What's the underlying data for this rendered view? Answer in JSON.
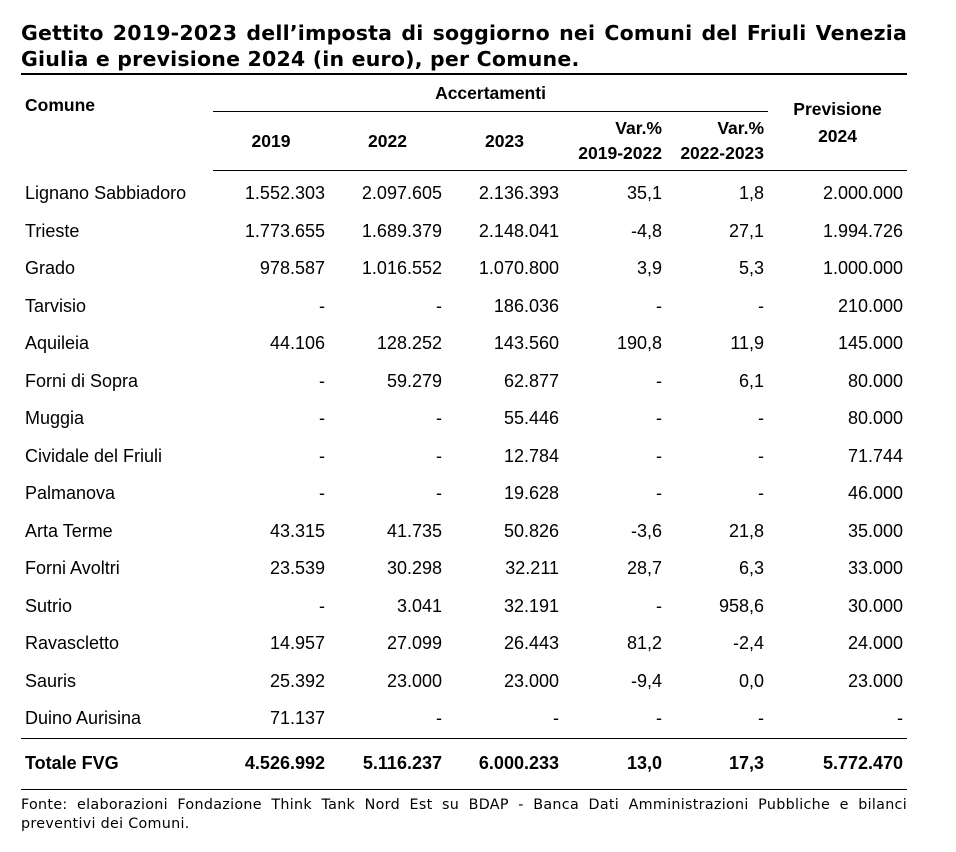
{
  "title": "Gettito 2019-2023 dell’imposta di soggiorno nei Comuni del Friuli Venezia Giulia e previsione 2024 (in euro), per Comune.",
  "headers": {
    "comune": "Comune",
    "accertamenti": "Accertamenti",
    "y2019": "2019",
    "y2022": "2022",
    "y2023": "2023",
    "var1_line1": "Var.%",
    "var1_line2": "2019-2022",
    "var2_line1": "Var.%",
    "var2_line2": "2022-2023",
    "prev_line1": "Previsione",
    "prev_line2": "2024"
  },
  "rows": [
    [
      "Lignano Sabbiadoro",
      "1.552.303",
      "2.097.605",
      "2.136.393",
      "35,1",
      "1,8",
      "2.000.000"
    ],
    [
      "Trieste",
      "1.773.655",
      "1.689.379",
      "2.148.041",
      "-4,8",
      "27,1",
      "1.994.726"
    ],
    [
      "Grado",
      "978.587",
      "1.016.552",
      "1.070.800",
      "3,9",
      "5,3",
      "1.000.000"
    ],
    [
      "Tarvisio",
      "-",
      "-",
      "186.036",
      "-",
      "-",
      "210.000"
    ],
    [
      "Aquileia",
      "44.106",
      "128.252",
      "143.560",
      "190,8",
      "11,9",
      "145.000"
    ],
    [
      "Forni di Sopra",
      "-",
      "59.279",
      "62.877",
      "-",
      "6,1",
      "80.000"
    ],
    [
      "Muggia",
      "-",
      "-",
      "55.446",
      "-",
      "-",
      "80.000"
    ],
    [
      "Cividale del Friuli",
      "-",
      "-",
      "12.784",
      "-",
      "-",
      "71.744"
    ],
    [
      "Palmanova",
      "-",
      "-",
      "19.628",
      "-",
      "-",
      "46.000"
    ],
    [
      "Arta Terme",
      "43.315",
      "41.735",
      "50.826",
      "-3,6",
      "21,8",
      "35.000"
    ],
    [
      "Forni Avoltri",
      "23.539",
      "30.298",
      "32.211",
      "28,7",
      "6,3",
      "33.000"
    ],
    [
      "Sutrio",
      "-",
      "3.041",
      "32.191",
      "-",
      "958,6",
      "30.000"
    ],
    [
      "Ravascletto",
      "14.957",
      "27.099",
      "26.443",
      "81,2",
      "-2,4",
      "24.000"
    ],
    [
      "Sauris",
      "25.392",
      "23.000",
      "23.000",
      "-9,4",
      "0,0",
      "23.000"
    ],
    [
      "Duino Aurisina",
      "71.137",
      "-",
      "-",
      "-",
      "-",
      "-"
    ]
  ],
  "total": [
    "Totale FVG",
    "4.526.992",
    "5.116.237",
    "6.000.233",
    "13,0",
    "17,3",
    "5.772.470"
  ],
  "source": "Fonte: elaborazioni Fondazione Think Tank Nord Est su BDAP - Banca Dati Amministrazioni Pubbliche e bilanci preventivi dei Comuni."
}
